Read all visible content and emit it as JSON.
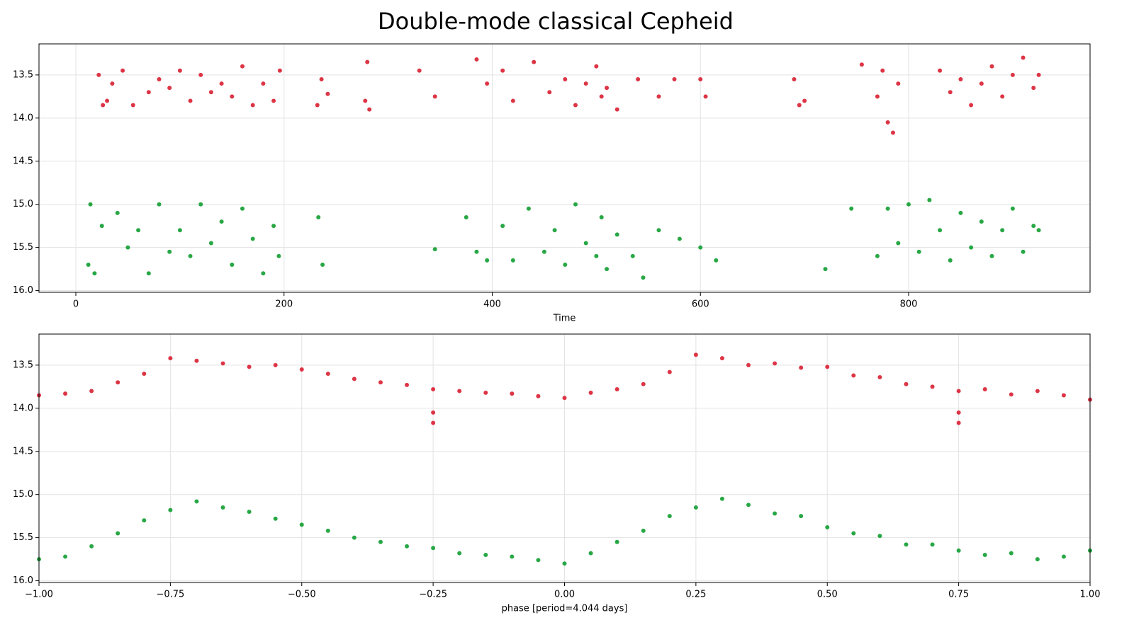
{
  "title": "Double-mode classical Cepheid",
  "chart_data": [
    {
      "type": "scatter",
      "xlabel": "Time",
      "xlim": [
        -35.4,
        974.3
      ],
      "xticks": [
        0,
        200,
        400,
        600,
        800
      ],
      "ylim": [
        13.14,
        16.02
      ],
      "invert_y": true,
      "yticks": [
        13.5,
        {
          "value": 14,
          "label": "14.0"
        },
        14.5,
        {
          "value": 15,
          "label": "15.0"
        },
        15.5,
        {
          "value": 16,
          "label": "16.0"
        }
      ],
      "grid": true,
      "series": [
        {
          "color": "#dc3545",
          "x": [
            22,
            26,
            30,
            35,
            45,
            55,
            70,
            80,
            90,
            100,
            110,
            120,
            130,
            140,
            150,
            160,
            170,
            180,
            190,
            196,
            232,
            236,
            242,
            278,
            280,
            282,
            330,
            345,
            385,
            395,
            410,
            420,
            440,
            455,
            470,
            480,
            490,
            500,
            505,
            510,
            520,
            540,
            560,
            575,
            600,
            605,
            690,
            695,
            700,
            755,
            770,
            775,
            780,
            785,
            790,
            830,
            840,
            850,
            860,
            870,
            880,
            890,
            900,
            910,
            920,
            925
          ],
          "values": [
            13.5,
            13.85,
            13.8,
            13.6,
            13.45,
            13.85,
            13.7,
            13.55,
            13.65,
            13.45,
            13.8,
            13.5,
            13.7,
            13.6,
            13.75,
            13.4,
            13.85,
            13.6,
            13.8,
            13.45,
            13.85,
            13.55,
            13.72,
            13.8,
            13.35,
            13.9,
            13.45,
            13.75,
            13.32,
            13.6,
            13.45,
            13.8,
            13.35,
            13.7,
            13.55,
            13.85,
            13.6,
            13.4,
            13.75,
            13.65,
            13.9,
            13.55,
            13.75,
            13.55,
            13.55,
            13.75,
            13.55,
            13.85,
            13.8,
            13.38,
            13.75,
            13.45,
            14.05,
            14.17,
            13.6,
            13.45,
            13.7,
            13.55,
            13.85,
            13.6,
            13.4,
            13.75,
            13.5,
            13.3,
            13.65,
            13.5
          ]
        },
        {
          "color": "#28a745",
          "x": [
            12,
            14,
            18,
            25,
            40,
            50,
            60,
            70,
            80,
            90,
            100,
            110,
            120,
            130,
            140,
            150,
            160,
            170,
            180,
            190,
            195,
            233,
            237,
            345,
            375,
            385,
            395,
            410,
            420,
            435,
            450,
            460,
            470,
            480,
            490,
            500,
            505,
            510,
            520,
            535,
            545,
            560,
            580,
            600,
            615,
            720,
            745,
            770,
            780,
            790,
            800,
            810,
            820,
            830,
            840,
            850,
            860,
            870,
            880,
            890,
            900,
            910,
            920,
            925
          ],
          "values": [
            15.7,
            15.0,
            15.8,
            15.25,
            15.1,
            15.5,
            15.3,
            15.8,
            15.0,
            15.55,
            15.3,
            15.6,
            15.0,
            15.45,
            15.2,
            15.7,
            15.05,
            15.4,
            15.8,
            15.25,
            15.6,
            15.15,
            15.7,
            15.52,
            15.15,
            15.55,
            15.65,
            15.25,
            15.65,
            15.05,
            15.55,
            15.3,
            15.7,
            15.0,
            15.45,
            15.6,
            15.15,
            15.75,
            15.35,
            15.6,
            15.85,
            15.3,
            15.4,
            15.5,
            15.65,
            15.75,
            15.05,
            15.6,
            15.05,
            15.45,
            15.0,
            15.55,
            14.95,
            15.3,
            15.65,
            15.1,
            15.5,
            15.2,
            15.6,
            15.3,
            15.05,
            15.55,
            15.25,
            15.3
          ]
        }
      ]
    },
    {
      "type": "scatter",
      "xlabel": "phase [period=4.044 days]",
      "xlim": [
        -1,
        1
      ],
      "xticks": [
        {
          "value": -1,
          "label": "−1.00"
        },
        {
          "value": -0.75,
          "label": "−0.75"
        },
        {
          "value": -0.5,
          "label": "−0.50"
        },
        {
          "value": -0.25,
          "label": "−0.25"
        },
        {
          "value": 0,
          "label": "0.00"
        },
        {
          "value": 0.25,
          "label": "0.25"
        },
        {
          "value": 0.5,
          "label": "0.50"
        },
        {
          "value": 0.75,
          "label": "0.75"
        },
        {
          "value": 1,
          "label": "1.00"
        }
      ],
      "ylim": [
        13.14,
        16.02
      ],
      "invert_y": true,
      "yticks": [
        13.5,
        {
          "value": 14,
          "label": "14.0"
        },
        14.5,
        {
          "value": 15,
          "label": "15.0"
        },
        15.5,
        {
          "value": 16,
          "label": "16.0"
        }
      ],
      "grid": true,
      "series": [
        {
          "color": "#dc3545",
          "x": [
            -1,
            -0.95,
            -0.9,
            -0.85,
            -0.8,
            -0.75,
            -0.7,
            -0.65,
            -0.6,
            -0.55,
            -0.5,
            -0.45,
            -0.4,
            -0.35,
            -0.3,
            -0.25,
            -0.2,
            -0.15,
            -0.1,
            -0.05,
            0,
            0.05,
            0.1,
            0.15,
            0.2,
            0.25,
            0.3,
            0.35,
            0.4,
            0.45,
            0.5,
            0.55,
            0.6,
            0.65,
            0.7,
            0.75,
            0.8,
            0.85,
            0.9,
            0.95,
            1,
            -0.25,
            -0.25,
            0.75,
            0.75
          ],
          "values": [
            13.85,
            13.83,
            13.8,
            13.7,
            13.6,
            13.42,
            13.45,
            13.48,
            13.52,
            13.5,
            13.55,
            13.6,
            13.66,
            13.7,
            13.73,
            13.78,
            13.8,
            13.82,
            13.83,
            13.86,
            13.88,
            13.82,
            13.78,
            13.72,
            13.58,
            13.38,
            13.42,
            13.5,
            13.48,
            13.53,
            13.52,
            13.62,
            13.64,
            13.72,
            13.75,
            13.8,
            13.78,
            13.84,
            13.8,
            13.85,
            13.9,
            14.05,
            14.17,
            14.05,
            14.17
          ]
        },
        {
          "color": "#28a745",
          "x": [
            -1,
            -0.95,
            -0.9,
            -0.85,
            -0.8,
            -0.75,
            -0.7,
            -0.65,
            -0.6,
            -0.55,
            -0.5,
            -0.45,
            -0.4,
            -0.35,
            -0.3,
            -0.25,
            -0.2,
            -0.15,
            -0.1,
            -0.05,
            0,
            0.05,
            0.1,
            0.15,
            0.2,
            0.25,
            0.3,
            0.35,
            0.4,
            0.45,
            0.5,
            0.55,
            0.6,
            0.65,
            0.7,
            0.75,
            0.8,
            0.85,
            0.9,
            0.95,
            1
          ],
          "values": [
            15.75,
            15.72,
            15.6,
            15.45,
            15.3,
            15.18,
            15.08,
            15.15,
            15.2,
            15.28,
            15.35,
            15.42,
            15.5,
            15.55,
            15.6,
            15.62,
            15.68,
            15.7,
            15.72,
            15.76,
            15.8,
            15.68,
            15.55,
            15.42,
            15.25,
            15.15,
            15.05,
            15.12,
            15.22,
            15.25,
            15.38,
            15.45,
            15.48,
            15.58,
            15.58,
            15.65,
            15.7,
            15.68,
            15.75,
            15.72,
            15.65
          ]
        }
      ]
    }
  ]
}
